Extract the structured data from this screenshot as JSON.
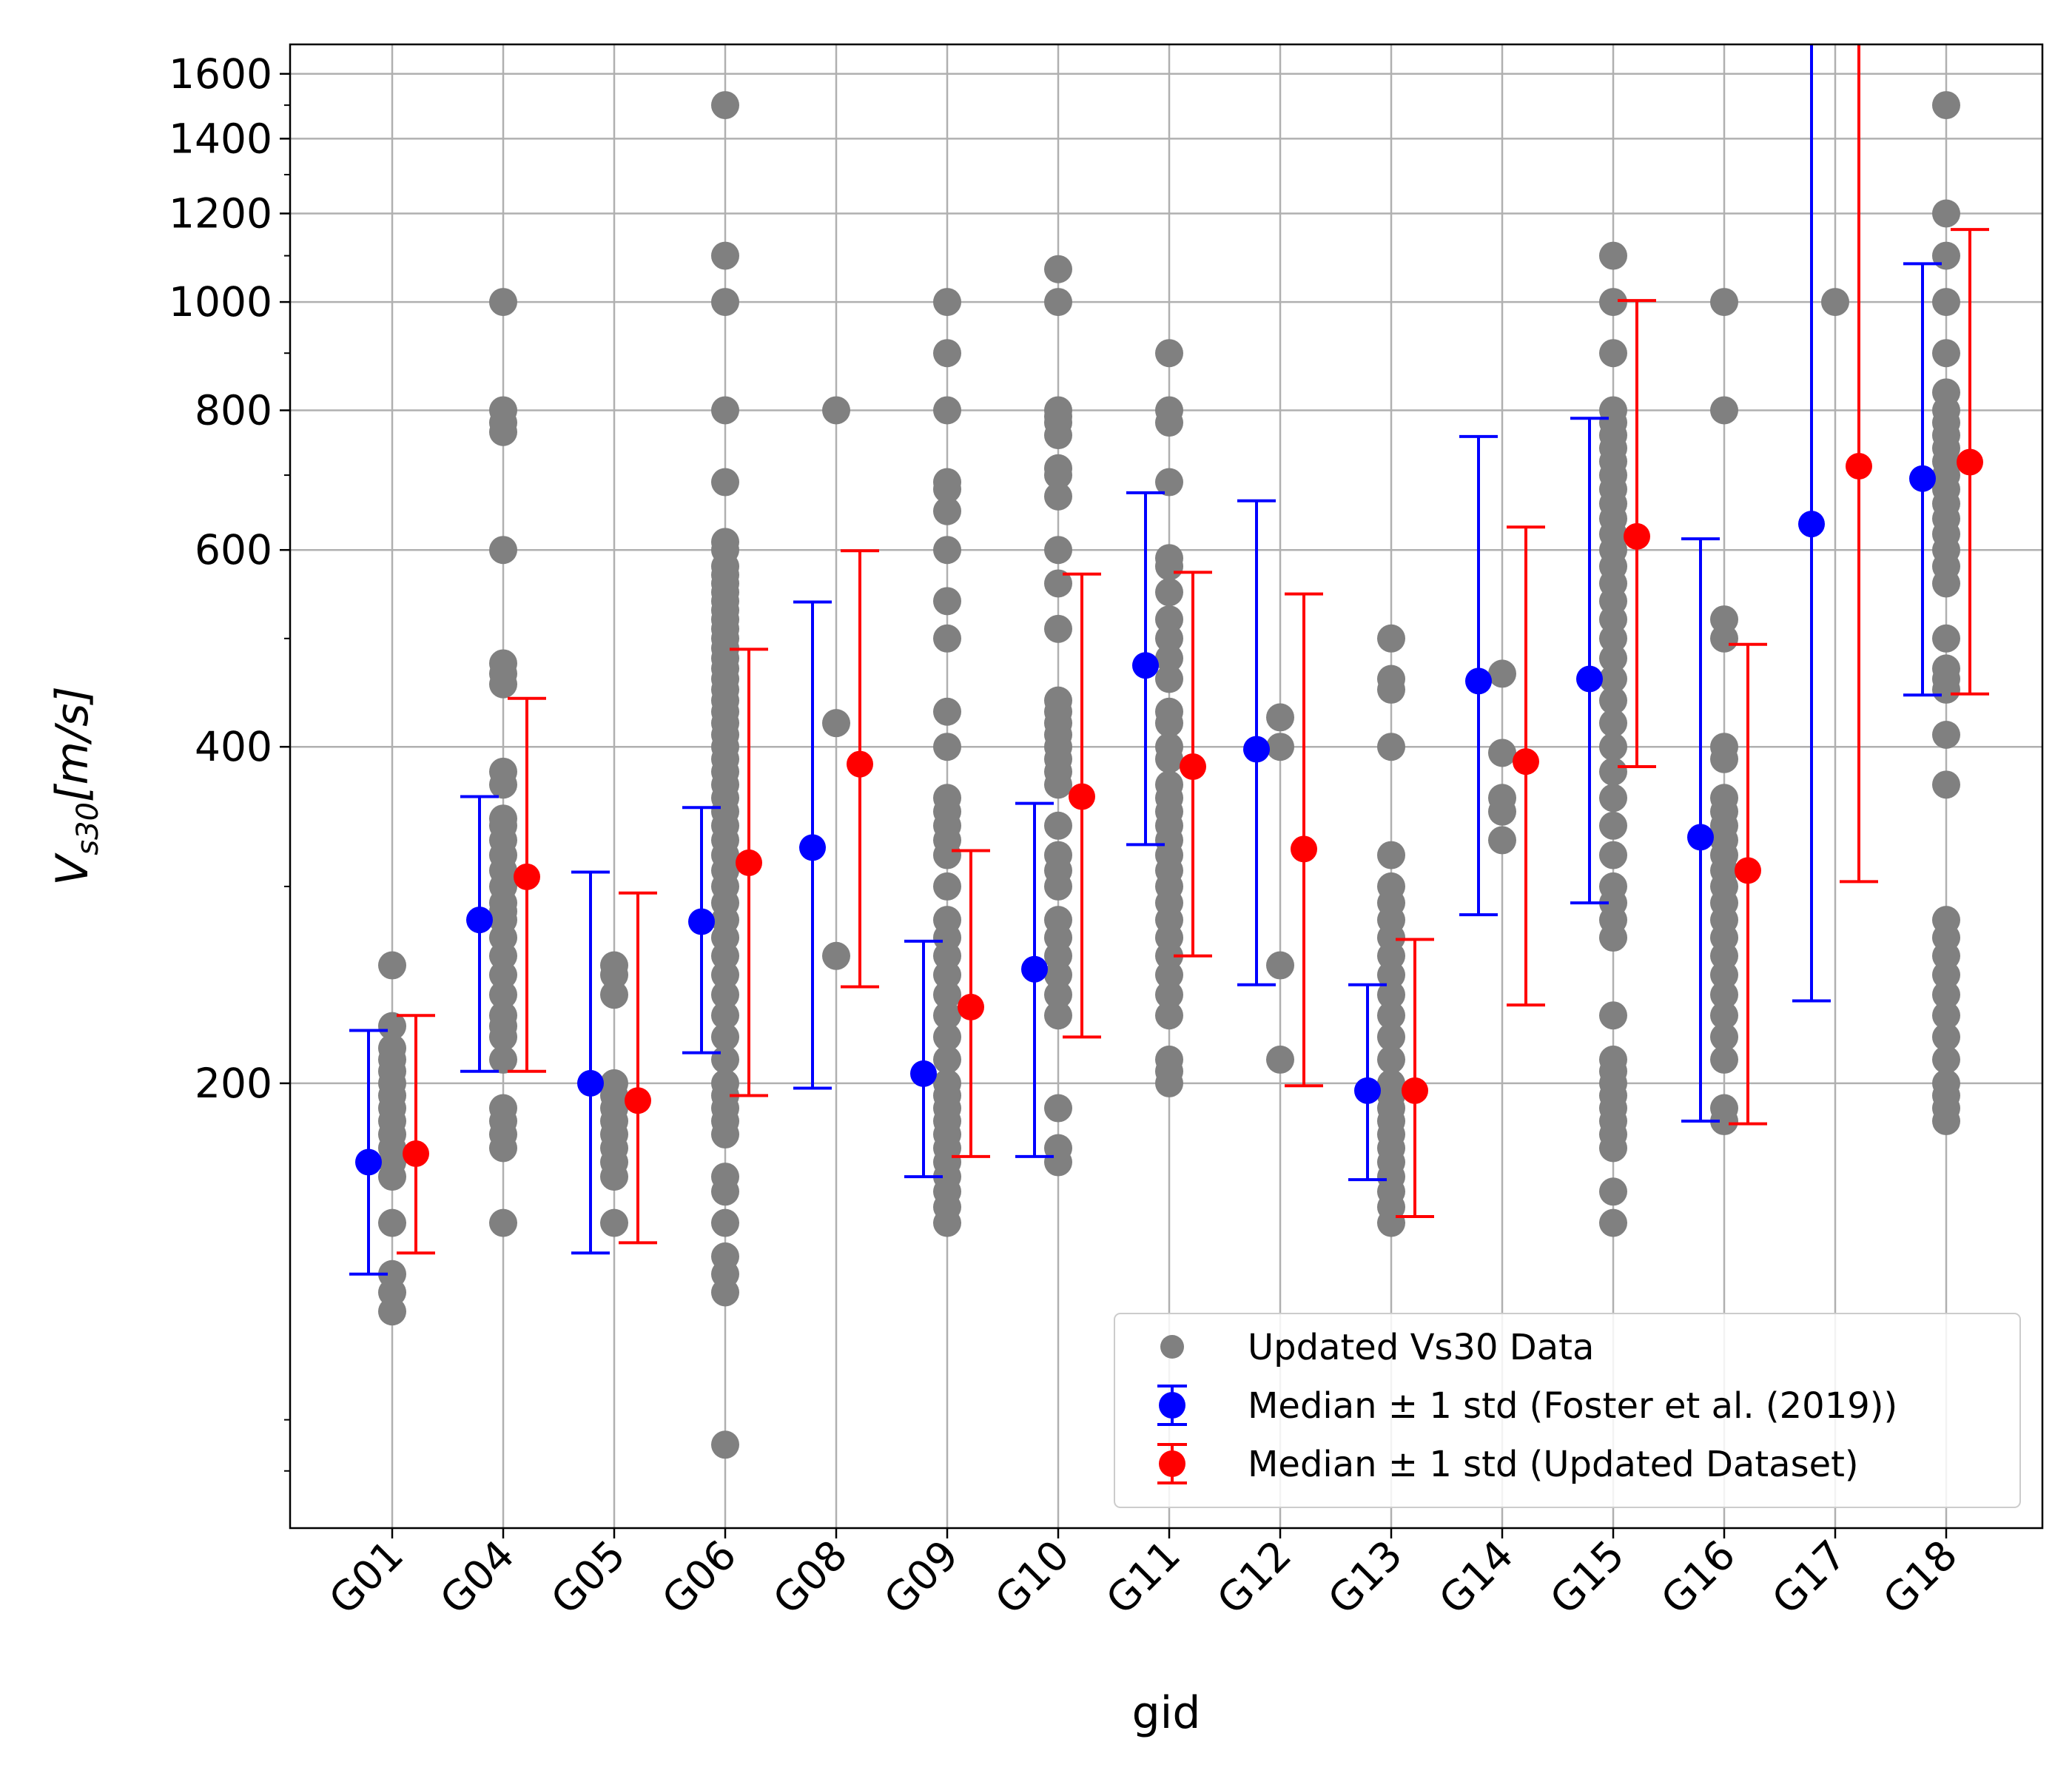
{
  "chart_data": {
    "type": "scatter",
    "title": "",
    "xlabel": "gid",
    "ylabel_main": "V",
    "ylabel_sub": "s30",
    "ylabel_rest": "[m/s]",
    "yscale": "log",
    "ylim": [
      80,
      1700
    ],
    "grid": true,
    "legend_position": "lower-right",
    "categories": [
      "G01",
      "G04",
      "G05",
      "G06",
      "G08",
      "G09",
      "G10",
      "G11",
      "G12",
      "G13",
      "G14",
      "G15",
      "G16",
      "G17",
      "G18"
    ],
    "yticks": [
      {
        "value": 200,
        "label": "200"
      },
      {
        "value": 400,
        "label": "400"
      },
      {
        "value": 600,
        "label": "600"
      },
      {
        "value": 800,
        "label": "800"
      },
      {
        "value": 1000,
        "label": "1000"
      },
      {
        "value": 1200,
        "label": "1200"
      },
      {
        "value": 1400,
        "label": "1400"
      },
      {
        "value": 1600,
        "label": "1600"
      }
    ],
    "yminor_ticks": [
      90,
      100
    ],
    "colors": {
      "data": "#808080",
      "foster": "#0000ff",
      "updated": "#ff0000",
      "grid": "#b0b0b0"
    },
    "legend": [
      {
        "key": "data",
        "label": "Updated Vs30 Data"
      },
      {
        "key": "foster",
        "label": "Median ± 1 std (Foster et al. (2019))"
      },
      {
        "key": "updated",
        "label": "Median ± 1 std (Updated Dataset)"
      }
    ],
    "series": [
      {
        "name": "Updated Vs30 Data",
        "points": {
          "G01": [
            255,
            225,
            215,
            210,
            205,
            200,
            195,
            190,
            185,
            180,
            175,
            170,
            165,
            150,
            135,
            130,
            125
          ],
          "G04": [
            1000,
            800,
            780,
            765,
            600,
            475,
            465,
            455,
            380,
            370,
            345,
            340,
            330,
            320,
            310,
            300,
            290,
            285,
            280,
            270,
            260,
            250,
            240,
            230,
            225,
            220,
            210,
            190,
            185,
            180,
            175,
            150
          ],
          "G05": [
            255,
            250,
            240,
            200,
            195,
            190,
            185,
            180,
            175,
            170,
            165,
            150
          ],
          "G06": [
            1500,
            1100,
            1000,
            800,
            690,
            610,
            600,
            580,
            570,
            560,
            550,
            540,
            530,
            520,
            510,
            500,
            490,
            480,
            470,
            460,
            450,
            440,
            430,
            420,
            410,
            400,
            390,
            380,
            370,
            360,
            350,
            340,
            330,
            320,
            310,
            300,
            290,
            280,
            270,
            260,
            250,
            240,
            230,
            220,
            210,
            200,
            195,
            190,
            185,
            180,
            165,
            160,
            150,
            140,
            135,
            130,
            95
          ],
          "G08": [
            800,
            420,
            260
          ],
          "G09": [
            1000,
            900,
            800,
            690,
            680,
            650,
            600,
            540,
            500,
            430,
            400,
            360,
            350,
            340,
            330,
            320,
            300,
            280,
            270,
            260,
            250,
            240,
            230,
            220,
            210,
            200,
            195,
            190,
            185,
            180,
            175,
            170,
            165,
            160,
            155,
            150
          ],
          "G10": [
            1070,
            1000,
            800,
            790,
            780,
            760,
            710,
            700,
            670,
            600,
            560,
            510,
            440,
            430,
            420,
            410,
            400,
            390,
            380,
            370,
            340,
            320,
            310,
            300,
            280,
            270,
            260,
            250,
            240,
            230,
            190,
            175,
            170
          ],
          "G11": [
            900,
            800,
            780,
            690,
            590,
            580,
            550,
            520,
            500,
            480,
            460,
            430,
            420,
            400,
            390,
            370,
            360,
            350,
            340,
            330,
            320,
            310,
            300,
            290,
            280,
            270,
            260,
            250,
            240,
            230,
            210,
            205,
            200
          ],
          "G12": [
            425,
            400,
            255,
            210
          ],
          "G13": [
            500,
            460,
            450,
            400,
            320,
            300,
            290,
            280,
            270,
            260,
            250,
            240,
            230,
            220,
            210,
            200,
            195,
            190,
            185,
            180,
            175,
            170,
            165,
            160,
            155,
            150
          ],
          "G14": [
            465,
            395,
            360,
            350,
            330
          ],
          "G15": [
            1100,
            1000,
            900,
            800,
            780,
            760,
            740,
            720,
            700,
            680,
            660,
            640,
            620,
            600,
            580,
            560,
            540,
            520,
            500,
            480,
            460,
            440,
            420,
            400,
            380,
            360,
            340,
            320,
            300,
            290,
            280,
            270,
            230,
            210,
            205,
            200,
            195,
            190,
            185,
            180,
            175,
            160,
            150
          ],
          "G16": [
            1000,
            800,
            520,
            500,
            400,
            390,
            360,
            350,
            340,
            330,
            320,
            310,
            300,
            290,
            280,
            270,
            260,
            250,
            240,
            230,
            220,
            210,
            190,
            185
          ],
          "G17": [
            1000
          ],
          "G18": [
            1500,
            1200,
            1100,
            1000,
            900,
            830,
            800,
            780,
            760,
            740,
            720,
            700,
            680,
            660,
            640,
            620,
            600,
            580,
            560,
            500,
            470,
            460,
            450,
            410,
            370,
            280,
            270,
            260,
            250,
            240,
            230,
            220,
            210,
            200,
            195,
            190,
            185
          ]
        }
      },
      {
        "name": "Median ± 1 std (Foster et al. (2019))",
        "median": [
          170,
          280,
          200,
          279,
          325,
          204,
          253,
          473,
          398,
          197,
          458,
          460,
          332,
          633,
          695
        ],
        "low": [
          135,
          205,
          141,
          213,
          198,
          165,
          172,
          327,
          245,
          164,
          283,
          290,
          185,
          237,
          445
        ],
        "high": [
          223,
          361,
          309,
          353,
          539,
          268,
          356,
          675,
          664,
          245,
          758,
          787,
          614,
          1700,
          1082
        ]
      },
      {
        "name": "Median ± 1 std (Updated Dataset)",
        "median": [
          173,
          306,
          193,
          315,
          386,
          234,
          361,
          384,
          324,
          197,
          388,
          617,
          310,
          713,
          719
        ],
        "low": [
          141,
          205,
          144,
          195,
          244,
          172,
          220,
          260,
          199,
          152,
          235,
          384,
          184,
          303,
          446
        ],
        "high": [
          230,
          442,
          296,
          489,
          599,
          323,
          571,
          573,
          548,
          269,
          629,
          1003,
          494,
          1700,
          1161
        ]
      }
    ]
  }
}
